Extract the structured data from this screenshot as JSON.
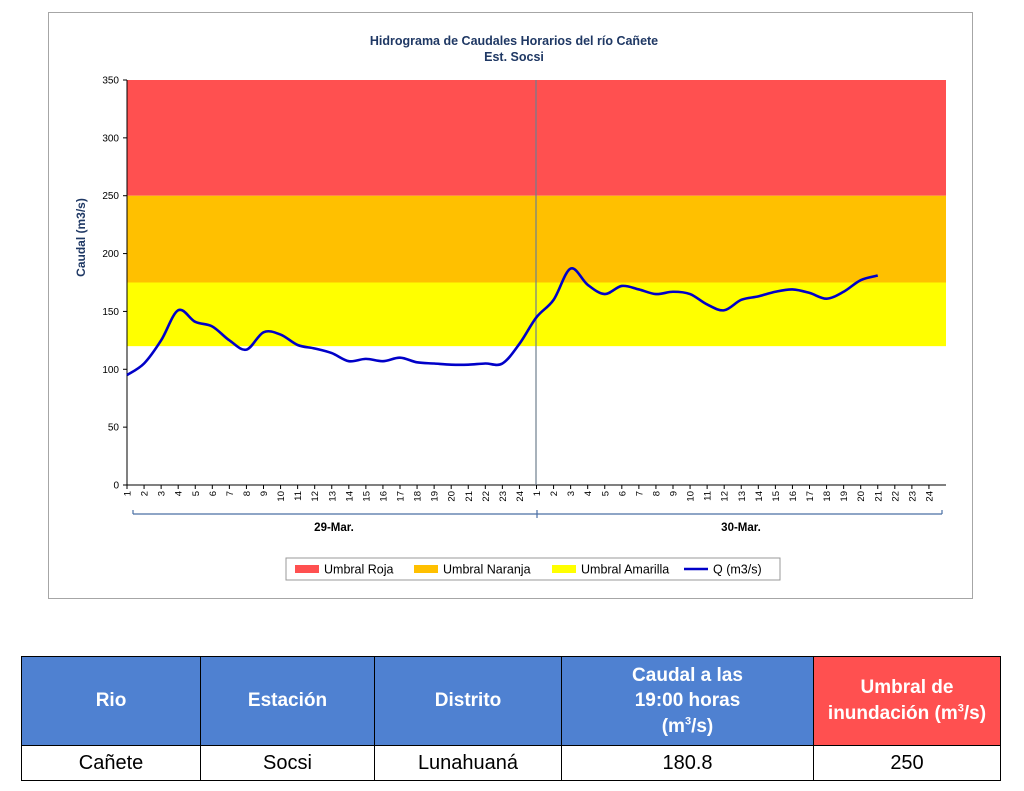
{
  "chart_data": {
    "type": "line",
    "title": "Hidrograma de Caudales Horarios del río Cañete",
    "subtitle": "Est. Socsi",
    "ylabel": "Caudal  (m3/s)",
    "ylim": [
      0,
      350
    ],
    "yticks": [
      0,
      50,
      100,
      150,
      200,
      250,
      300,
      350
    ],
    "x_tick_labels": [
      "1",
      "2",
      "3",
      "4",
      "5",
      "6",
      "7",
      "8",
      "9",
      "10",
      "11",
      "12",
      "13",
      "14",
      "15",
      "16",
      "17",
      "18",
      "19",
      "20",
      "21",
      "22",
      "23",
      "24",
      "1",
      "2",
      "3",
      "4",
      "5",
      "6",
      "7",
      "8",
      "9",
      "10",
      "11",
      "12",
      "13",
      "14",
      "15",
      "16",
      "17",
      "18",
      "19",
      "20",
      "21",
      "22",
      "23",
      "24"
    ],
    "day_groups": [
      "29-Mar.",
      "30-Mar."
    ],
    "bands": [
      {
        "name": "Umbral Roja",
        "from": 250,
        "to": 350,
        "color": "#ff5050"
      },
      {
        "name": "Umbral Naranja",
        "from": 175,
        "to": 250,
        "color": "#ffc000"
      },
      {
        "name": "Umbral Amarilla",
        "from": 120,
        "to": 175,
        "color": "#ffff00"
      }
    ],
    "series": [
      {
        "name": "Q (m3/s)",
        "color": "#0000c8",
        "values": [
          95,
          105,
          125,
          151,
          141,
          137,
          125,
          117,
          132,
          130,
          121,
          118,
          114,
          107,
          109,
          107,
          110,
          106,
          105,
          104,
          104,
          105,
          105,
          122,
          145,
          160,
          187,
          173,
          165,
          172,
          169,
          165,
          167,
          165,
          156,
          151,
          160,
          163,
          167,
          169,
          166,
          161,
          167,
          177,
          181
        ]
      }
    ],
    "legend": [
      "Umbral Roja",
      "Umbral Naranja",
      "Umbral Amarilla",
      "Q (m3/s)"
    ],
    "legend_position": "bottom"
  },
  "table": {
    "headers": {
      "rio": "Rio",
      "estacion": "Estación",
      "distrito": "Distrito",
      "caudal_line1": "Caudal a las",
      "caudal_line2": "19:00 horas",
      "caudal_unit_pre": "(m",
      "caudal_unit_sup": "3",
      "caudal_unit_post": "/s)",
      "umbral_line1": "Umbral de",
      "umbral_line2": "inundación (m",
      "umbral_unit_sup": "3",
      "umbral_unit_post": "/s)"
    },
    "row": {
      "rio": "Cañete",
      "estacion": "Socsi",
      "distrito": "Lunahuaná",
      "caudal": "180.8",
      "umbral": "250"
    }
  }
}
